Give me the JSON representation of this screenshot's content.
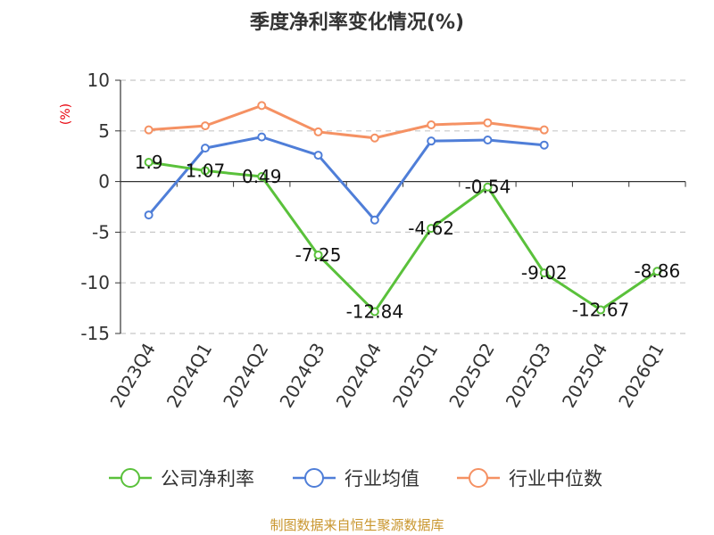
{
  "title": "季度净利率变化情况(%)",
  "source": "制图数据来自恒生聚源数据库",
  "chart_data": {
    "type": "line",
    "title": "季度净利率变化情况(%)",
    "ylabel": "(%)",
    "ylim": [
      -15,
      10
    ],
    "yticks": [
      10,
      5,
      0,
      -5,
      -10,
      -15
    ],
    "grid": true,
    "legend_position": "bottom",
    "categories": [
      "2023Q4",
      "2024Q1",
      "2024Q2",
      "2024Q3",
      "2024Q4",
      "2025Q1",
      "2025Q2",
      "2025Q3",
      "2025Q4",
      "2026Q1"
    ],
    "series": [
      {
        "name": "公司净利率",
        "color": "#5ac13b",
        "values": [
          1.9,
          1.07,
          0.49,
          -7.25,
          -12.84,
          -4.62,
          -0.54,
          -9.02,
          -12.67,
          -8.86
        ],
        "labels": [
          "1.9",
          "1.07",
          "0.49",
          "-7.25",
          "-12.84",
          "-4.62",
          "-0.54",
          "-9.02",
          "-12.67",
          "-8.86"
        ]
      },
      {
        "name": "行业均值",
        "color": "#4f7ed8",
        "values": [
          -3.3,
          3.3,
          4.4,
          2.6,
          -3.8,
          4.0,
          4.1,
          3.6,
          null,
          null
        ]
      },
      {
        "name": "行业中位数",
        "color": "#f59163",
        "values": [
          5.1,
          5.5,
          7.5,
          4.9,
          4.3,
          5.6,
          5.8,
          5.1,
          null,
          null
        ]
      }
    ]
  }
}
